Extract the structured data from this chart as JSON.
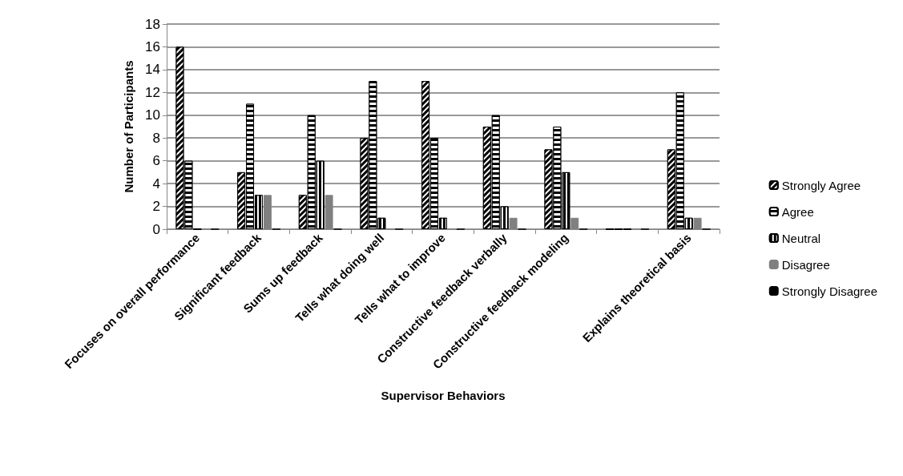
{
  "chart_data": {
    "type": "bar",
    "xlabel": "Supervisor Behaviors",
    "ylabel": "Number of Participants",
    "categories": [
      "Focuses on overall performance",
      "Significant feedback",
      "Sums up feedback",
      "Tells what doing well",
      "Tells what to improve",
      "Constructive feedback verbally",
      "Constructive feedback modeling",
      null,
      "Explains theoretical basis"
    ],
    "series": [
      {
        "name": "Strongly Agree",
        "color": "#000000",
        "values": [
          16,
          5,
          3,
          8,
          13,
          9,
          7,
          0,
          7
        ]
      },
      {
        "name": "Agree",
        "color": "#000000",
        "values": [
          6,
          11,
          10,
          13,
          8,
          10,
          9,
          0,
          12
        ]
      },
      {
        "name": "Neutral",
        "color": "#000000",
        "values": [
          0,
          3,
          6,
          1,
          1,
          2,
          5,
          0,
          1
        ]
      },
      {
        "name": "Disagree",
        "color": "#808080",
        "values": [
          0,
          3,
          3,
          0,
          0,
          1,
          1,
          0,
          1
        ]
      },
      {
        "name": "Strongly Disagree",
        "color": "#000000",
        "values": [
          0,
          0,
          0,
          0,
          0,
          0,
          0,
          0,
          0
        ]
      }
    ],
    "ylim": [
      0,
      18
    ],
    "yticks": [
      0,
      2,
      4,
      6,
      8,
      10,
      12,
      14,
      16,
      18
    ],
    "grid": "y",
    "legend": "right"
  }
}
